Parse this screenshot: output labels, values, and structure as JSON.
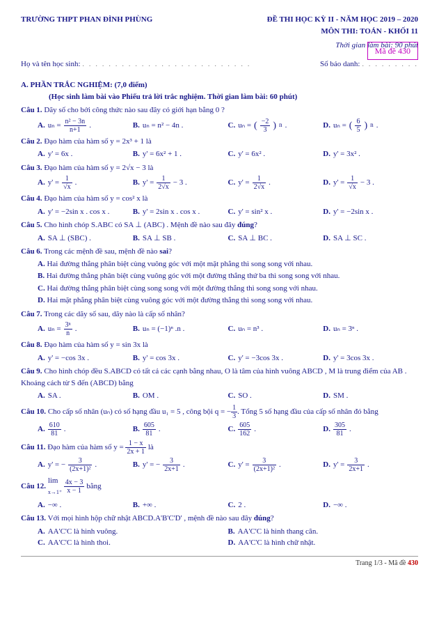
{
  "header": {
    "school": "TRƯỜNG THPT PHAN ĐÌNH PHÙNG",
    "exam_title": "ĐỀ THI HỌC KỲ II - NĂM HỌC 2019 – 2020",
    "subject": "MÔN THI: TOÁN - KHỐI 11",
    "time": "Thời gian làm bài: 90 phút",
    "ma_de": "Mã đề 430",
    "name_label": "Họ và tên học sinh:",
    "sbd_label": "Số báo danh:"
  },
  "section_a": {
    "title": "A. PHẦN TRẮC NGHIỆM: (7,0 điểm)",
    "note": "(Học sinh làm bài vào Phiếu trả lời trắc nghiệm. Thời gian làm bài: 60 phút)"
  },
  "q1": {
    "label": "Câu 1.",
    "text": "Dãy số cho bởi công thức nào sau đây có giới hạn bằng 0 ?",
    "a_n": "n² − 3n",
    "a_d": "n+1",
    "b": "uₙ = n² − 4n .",
    "c_n": "−2",
    "c_d": "3",
    "d_n": "6",
    "d_d": "5"
  },
  "q2": {
    "label": "Câu 2.",
    "text": "Đạo hàm của hàm số  y = 2x³ + 1  là",
    "a": "y' = 6x .",
    "b": "y' = 6x² + 1 .",
    "c": "y' = 6x² .",
    "d": "y' = 3x² ."
  },
  "q3": {
    "label": "Câu 3.",
    "text": "Đạo hàm của hàm số  y = 2√x − 3  là",
    "a_d": "√x",
    "b_d": "2√x",
    "c_d": "2√x",
    "d_d": "√x"
  },
  "q4": {
    "label": "Câu 4.",
    "text": "Đạo hàm của hàm số  y = cos² x  là",
    "a": "y' = −2sin x . cos x .",
    "b": "y' = 2sin x . cos x .",
    "c": "y' = sin² x .",
    "d": "y' = −2sin x ."
  },
  "q5": {
    "label": "Câu 5.",
    "t1": "Cho hình chóp  S.ABC  có  SA ⊥ (ABC) . Mệnh đề nào sau đây ",
    "t2": "đúng",
    "t3": "?",
    "a": "SA ⊥ (SBC) .",
    "b": "SA ⊥ SB .",
    "c": "SA ⊥ BC .",
    "d": "SA ⊥ SC ."
  },
  "q6": {
    "label": "Câu 6.",
    "t1": "Trong các mệnh đề sau, mệnh đề nào ",
    "t2": "sai",
    "t3": "?",
    "a": "Hai đường thẳng phân biệt cùng vuông góc với một mặt phẳng thì song song với nhau.",
    "b": "Hai đường thẳng phân biệt cùng vuông góc với một đường thẳng thứ ba thì song song với nhau.",
    "c": "Hai đường thẳng phân biệt cùng song song với một đường thẳng thì song song với nhau.",
    "d": "Hai mặt phẳng phân biệt cùng vuông góc với một đường thẳng thì song song với nhau."
  },
  "q7": {
    "label": "Câu 7.",
    "text": "Trong các dãy số sau, dãy nào là cấp số nhân?",
    "b": "uₙ = (−1)ⁿ .n .",
    "c": "uₙ = n³ .",
    "d": "uₙ = 3ⁿ ."
  },
  "q8": {
    "label": "Câu 8.",
    "text": "Đạo hàm của hàm số  y = sin 3x  là",
    "a": "y' = −cos 3x .",
    "b": "y' = cos 3x .",
    "c": "y' = −3cos 3x .",
    "d": "y' = 3cos 3x ."
  },
  "q9": {
    "label": "Câu 9.",
    "t1": "Cho hình chóp đều  S.ABCD  có tất cả các cạnh bằng nhau,  O  là tâm của hình vuông  ABCD ,  M  là trung điểm của  AB . Khoảng cách từ  S  đến  (ABCD)  bằng",
    "a": "SA .",
    "b": "OM .",
    "c": "SO .",
    "d": "SM ."
  },
  "q10": {
    "label": "Câu 10.",
    "t1": "Cho cấp số nhân  (uₙ)  có số hạng đầu  u₁ = 5 , công bội  q = −",
    "t2": ". Tổng 5 số hạng đầu của cấp số nhân đó bằng",
    "a_n": "610",
    "a_d": "81",
    "b_n": "605",
    "b_d": "81",
    "c_n": "605",
    "c_d": "162",
    "d_n": "305",
    "d_d": "81"
  },
  "q11": {
    "label": "Câu 11.",
    "t1": "Đạo hàm của hàm số  y = ",
    "t2": "  là",
    "top": "1 − x",
    "bot": "2x + 1",
    "a_d": "(2x+1)²",
    "b_d": "2x+1",
    "c_d": "(2x+1)²",
    "d_d": "2x+1"
  },
  "q12": {
    "label": "Câu 12.",
    "t1": "lim",
    "t2": "  bằng",
    "top": "4x − 3",
    "bot": "x − 1",
    "a": "−∞ .",
    "b": "+∞ .",
    "c": "2 .",
    "d": "−∞ ."
  },
  "q13": {
    "label": "Câu 13.",
    "t1": "Với mọi hình hộp chữ nhật  ABCD.A'B'C'D' , mệnh đề nào sau đây ",
    "t2": "đúng",
    "t3": "?",
    "a": "AA'C'C  là hình vuông.",
    "b": "AA'C'C  là hình thang cân.",
    "c": "AA'C'C  là hình thoi.",
    "d": "AA'C'C  là hình chữ nhật."
  },
  "footer": {
    "p1": "Trang 1/3 - Mã đề ",
    "p2": "430"
  }
}
